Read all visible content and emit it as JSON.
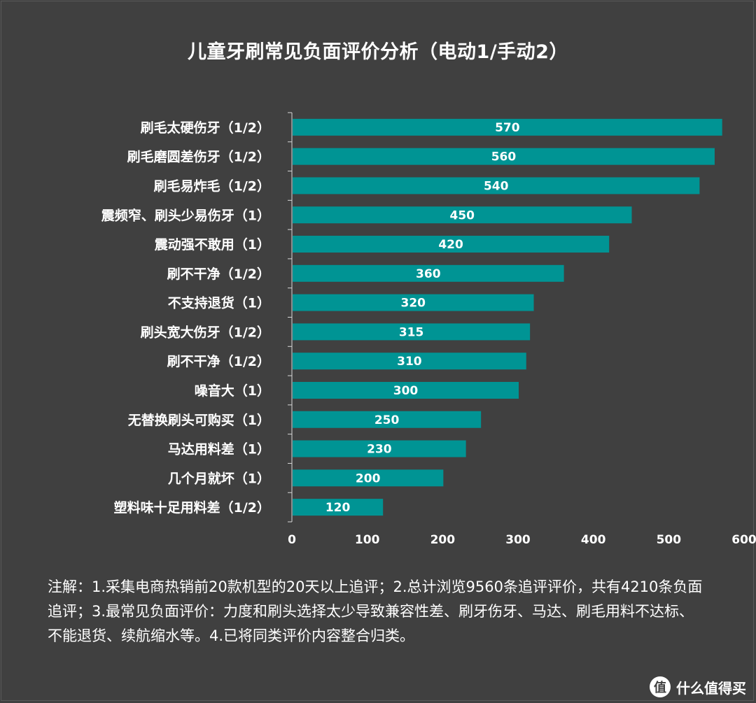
{
  "chart_data": {
    "type": "bar",
    "orientation": "horizontal",
    "title": "儿童牙刷常见负面评价分析（电动1/手动2）",
    "categories": [
      "刷毛太硬伤牙（1/2）",
      "刷毛磨圆差伤牙（1/2）",
      "刷毛易炸毛（1/2）",
      "震频窄、刷头少易伤牙（1）",
      "震动强不敢用（1）",
      "刷不干净（1/2）",
      "不支持退货（1）",
      "刷头宽大伤牙（1/2）",
      "刷不干净（1/2）",
      "噪音大（1）",
      "无替换刷头可购买（1）",
      "马达用料差（1）",
      "几个月就坏（1）",
      "塑料味十足用料差（1/2）"
    ],
    "values": [
      570,
      560,
      540,
      450,
      420,
      360,
      320,
      315,
      310,
      300,
      250,
      230,
      200,
      120
    ],
    "data_labels": [
      "570",
      "560",
      "540",
      "450",
      "420",
      "360",
      "320",
      "315",
      "310",
      "300",
      "250",
      "230",
      "200",
      "120"
    ],
    "xlim": [
      0,
      600
    ],
    "xticks": [
      0,
      100,
      200,
      300,
      400,
      500,
      600
    ],
    "xtick_labels": [
      "0",
      "100",
      "200",
      "300",
      "400",
      "500",
      "600"
    ],
    "bar_color": "#009494",
    "background_color": "#404040",
    "grid": false,
    "legend": "none"
  },
  "note": "注解：1.采集电商热销前20款机型的20天以上追评；2.总计浏览9560条追评评价，共有4210条负面追评；3.最常见负面评价：力度和刷头选择太少导致兼容性差、刷牙伤牙、马达、刷毛用料不达标、不能退货、续航缩水等。4.已将同类评价内容整合归类。",
  "watermark": {
    "logo_text": "值",
    "text": "什么值得买"
  }
}
